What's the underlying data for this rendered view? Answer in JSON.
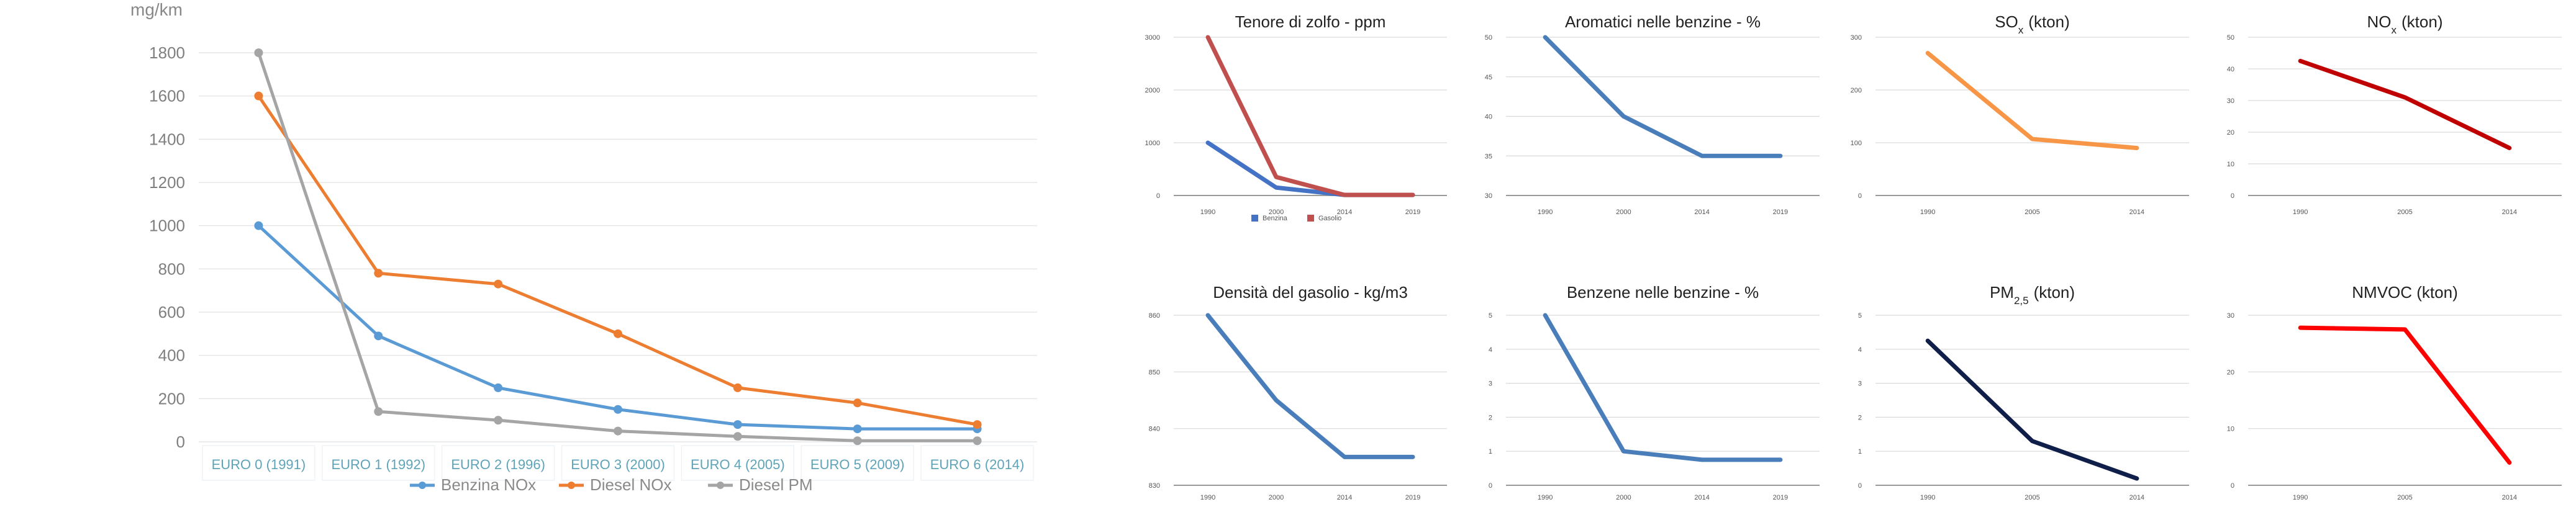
{
  "chart_data": [
    {
      "type": "line",
      "title": "",
      "ylabel": "mg/km",
      "categories": [
        "EURO 0 (1991)",
        "EURO 1 (1992)",
        "EURO 2 (1996)",
        "EURO 3 (2000)",
        "EURO 4 (2005)",
        "EURO 5 (2009)",
        "EURO 6 (2014)"
      ],
      "ylim": [
        0,
        1800
      ],
      "yticks": [
        "0",
        "200",
        "400",
        "600",
        "800",
        "1000",
        "1200",
        "1400",
        "1600",
        "1800"
      ],
      "grid": true,
      "legend": "bottom",
      "series": [
        {
          "name": "Benzina NOx",
          "color": "#5b9bd5",
          "values": [
            1000,
            490,
            250,
            150,
            80,
            60,
            60
          ]
        },
        {
          "name": "Diesel NOx",
          "color": "#ed7d31",
          "values": [
            1600,
            780,
            730,
            500,
            250,
            180,
            80
          ]
        },
        {
          "name": "Diesel PM",
          "color": "#a5a5a5",
          "values": [
            1800,
            140,
            100,
            50,
            25,
            5,
            5
          ]
        }
      ]
    },
    {
      "type": "line",
      "title": "Tenore di zolfo - ppm",
      "categories": [
        "1990",
        "2000",
        "2014",
        "2019"
      ],
      "ylim": [
        0,
        3000
      ],
      "yticks": [
        "0",
        "1000",
        "2000",
        "3000"
      ],
      "grid": true,
      "legend": "bottom",
      "series": [
        {
          "name": "Benzina",
          "color": "#4472c4",
          "values": [
            1000,
            150,
            10,
            10
          ]
        },
        {
          "name": "Gasolio",
          "color": "#c0504d",
          "values": [
            3000,
            350,
            10,
            10
          ]
        }
      ]
    },
    {
      "type": "line",
      "title": "Aromatici nelle benzine - %",
      "categories": [
        "1990",
        "2000",
        "2014",
        "2019"
      ],
      "ylim": [
        30,
        50
      ],
      "yticks": [
        "30",
        "35",
        "40",
        "45",
        "50"
      ],
      "grid": true,
      "series": [
        {
          "color": "#4a7ebb",
          "values": [
            50,
            40,
            35,
            35
          ]
        }
      ]
    },
    {
      "type": "line",
      "title": "SOx (kton)",
      "title_main": "SO",
      "title_sub": "x",
      "title_unit": "(kton)",
      "categories": [
        "1990",
        "2005",
        "2014"
      ],
      "ylim": [
        0,
        300
      ],
      "yticks": [
        "0",
        "100",
        "200",
        "300"
      ],
      "grid": true,
      "series": [
        {
          "color": "#f79646",
          "values": [
            270,
            107,
            90
          ]
        }
      ]
    },
    {
      "type": "line",
      "title": "NOx (kton)",
      "title_main": "NO",
      "title_sub": "x",
      "title_unit": "(kton)",
      "categories": [
        "1990",
        "2005",
        "2014"
      ],
      "ylim": [
        0,
        50
      ],
      "yticks": [
        "0",
        "10",
        "20",
        "30",
        "40",
        "50"
      ],
      "grid": true,
      "series": [
        {
          "color": "#c00000",
          "values": [
            42.5,
            31,
            15
          ]
        }
      ]
    },
    {
      "type": "line",
      "title": "Densità del gasolio - kg/m3",
      "categories": [
        "1990",
        "2000",
        "2014",
        "2019"
      ],
      "ylim": [
        830,
        860
      ],
      "yticks": [
        "830",
        "840",
        "850",
        "860"
      ],
      "grid": true,
      "series": [
        {
          "color": "#4a7ebb",
          "values": [
            860,
            845,
            835,
            835
          ]
        }
      ]
    },
    {
      "type": "line",
      "title": "Benzene nelle benzine - %",
      "categories": [
        "1990",
        "2000",
        "2014",
        "2019"
      ],
      "ylim": [
        0,
        5
      ],
      "yticks": [
        "0",
        "1",
        "2",
        "3",
        "4",
        "5"
      ],
      "grid": true,
      "series": [
        {
          "color": "#4a7ebb",
          "values": [
            5,
            1,
            0.75,
            0.75
          ]
        }
      ]
    },
    {
      "type": "line",
      "title": "PM2,5 (kton)",
      "title_main": "PM",
      "title_sub": "2,5",
      "title_unit": "(kton)",
      "categories": [
        "1990",
        "2005",
        "2014"
      ],
      "ylim": [
        0,
        5
      ],
      "yticks": [
        "0",
        "1",
        "2",
        "3",
        "4",
        "5"
      ],
      "grid": true,
      "series": [
        {
          "color": "#0f1f4a",
          "values": [
            4.25,
            1.3,
            0.2
          ]
        }
      ]
    },
    {
      "type": "line",
      "title": "NMVOC (kton)",
      "categories": [
        "1990",
        "2005",
        "2014"
      ],
      "ylim": [
        0,
        30
      ],
      "yticks": [
        "0",
        "10",
        "20",
        "30"
      ],
      "grid": true,
      "series": [
        {
          "color": "#ff0000",
          "values": [
            27.8,
            27.5,
            4
          ]
        }
      ]
    }
  ]
}
